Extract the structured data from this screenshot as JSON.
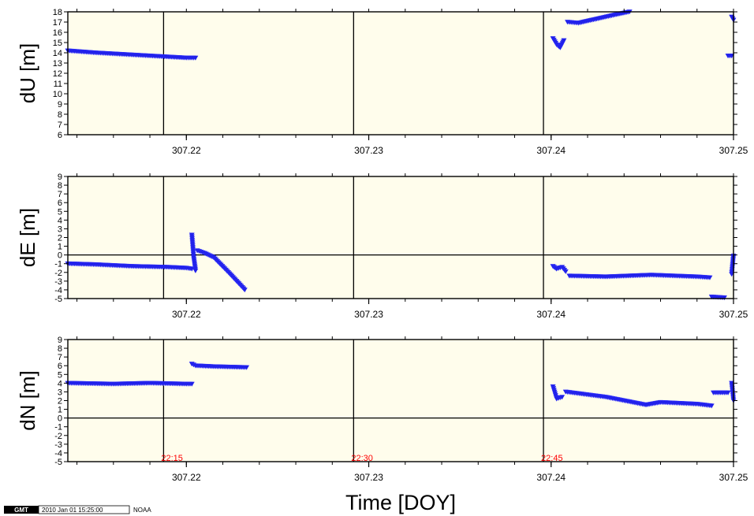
{
  "chart_data": {
    "type": "scatter",
    "xlabel": "Time [DOY]",
    "xlim": [
      307.2135,
      307.25
    ],
    "x_ticks": [
      "307.22",
      "307.23",
      "307.24",
      "307.25"
    ],
    "x_tick_values": [
      307.22,
      307.23,
      307.24,
      307.25
    ],
    "time_marks": [
      {
        "x": 307.21875,
        "label": "22:15"
      },
      {
        "x": 307.22917,
        "label": "22:30"
      },
      {
        "x": 307.23958,
        "label": "22:45"
      }
    ],
    "marker": "inverted-triangle",
    "marker_color": "#1f1fe6",
    "panels": [
      {
        "ylabel": "dU [m]",
        "ylim": [
          6,
          18
        ],
        "yticks": [
          6,
          7,
          8,
          9,
          10,
          11,
          12,
          13,
          14,
          15,
          16,
          17,
          18
        ],
        "zero_line": false,
        "segments": [
          {
            "x": [
              307.2135,
              307.215,
              307.217,
              307.219,
              307.22,
              307.2205
            ],
            "y": [
              14.2,
              14.0,
              13.8,
              13.6,
              13.5,
              13.5
            ]
          },
          {
            "x": [
              307.2401,
              307.2403,
              307.2405,
              307.2407
            ],
            "y": [
              15.4,
              14.8,
              14.5,
              15.2
            ]
          },
          {
            "x": [
              307.2409,
              307.2415,
              307.2425,
              307.2435,
              307.2443
            ],
            "y": [
              17.0,
              16.9,
              17.3,
              17.7,
              18.0
            ]
          },
          {
            "x": [
              307.2497,
              307.2499
            ],
            "y": [
              13.7,
              13.7
            ]
          },
          {
            "x": [
              307.2499,
              307.25
            ],
            "y": [
              17.5,
              17.2
            ]
          }
        ]
      },
      {
        "ylabel": "dE [m]",
        "ylim": [
          -5,
          9
        ],
        "yticks": [
          -5,
          -4,
          -3,
          -2,
          -1,
          0,
          1,
          2,
          3,
          4,
          5,
          6,
          7,
          8,
          9
        ],
        "zero_line": true,
        "segments": [
          {
            "x": [
              307.2135,
              307.215,
              307.217,
              307.219,
              307.22,
              307.2203
            ],
            "y": [
              -1.0,
              -1.1,
              -1.3,
              -1.4,
              -1.5,
              -1.6
            ]
          },
          {
            "x": [
              307.2203,
              307.2204,
              307.2205
            ],
            "y": [
              2.3,
              -0.3,
              -1.8
            ]
          },
          {
            "x": [
              307.2206,
              307.221,
              307.2215,
              307.2223,
              307.2232
            ],
            "y": [
              0.5,
              0.2,
              -0.3,
              -2.0,
              -4.0
            ]
          },
          {
            "x": [
              307.2401,
              307.2403,
              307.2406,
              307.2408
            ],
            "y": [
              -1.3,
              -1.6,
              -1.4,
              -1.9
            ]
          },
          {
            "x": [
              307.241,
              307.243,
              307.2455,
              307.248,
              307.2487
            ],
            "y": [
              -2.4,
              -2.5,
              -2.3,
              -2.5,
              -2.6
            ]
          },
          {
            "x": [
              307.2488,
              307.2495
            ],
            "y": [
              -4.8,
              -4.9
            ]
          },
          {
            "x": [
              307.2499,
              307.25
            ],
            "y": [
              -2.2,
              -0.1
            ]
          }
        ]
      },
      {
        "ylabel": "dN [m]",
        "ylim": [
          -5,
          9
        ],
        "yticks": [
          -5,
          -4,
          -3,
          -2,
          -1,
          0,
          1,
          2,
          3,
          4,
          5,
          6,
          7,
          8,
          9
        ],
        "zero_line": true,
        "segments": [
          {
            "x": [
              307.2135,
              307.216,
              307.218,
              307.22,
              307.2203
            ],
            "y": [
              4.0,
              3.9,
              4.0,
              3.9,
              3.9
            ]
          },
          {
            "x": [
              307.2203,
              307.2205,
              307.2215,
              307.2233
            ],
            "y": [
              6.2,
              6.0,
              5.9,
              5.8
            ]
          },
          {
            "x": [
              307.2401,
              307.2403,
              307.2406
            ],
            "y": [
              3.6,
              2.2,
              2.4
            ]
          },
          {
            "x": [
              307.2408,
              307.243,
              307.2452,
              307.246,
              307.248,
              307.2488
            ],
            "y": [
              3.0,
              2.4,
              1.5,
              1.8,
              1.6,
              1.4
            ]
          },
          {
            "x": [
              307.2489,
              307.2497
            ],
            "y": [
              2.9,
              2.9
            ]
          },
          {
            "x": [
              307.2499,
              307.25
            ],
            "y": [
              4.0,
              2.0
            ]
          }
        ]
      }
    ]
  },
  "footer": {
    "logo_text": "GMT",
    "timestamp": "2010 Jan 01 15:25:00",
    "org": "NOAA"
  }
}
